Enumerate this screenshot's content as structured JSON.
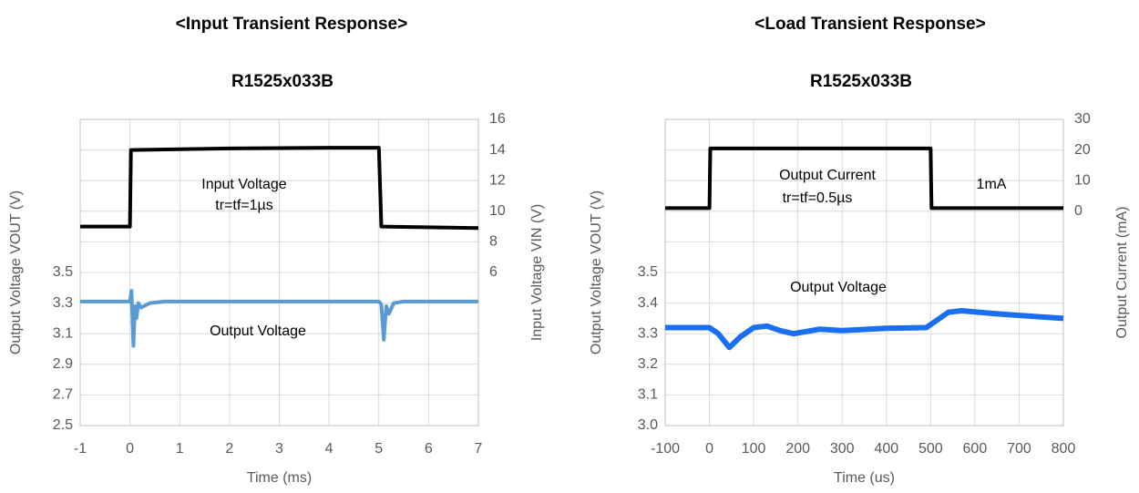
{
  "chart_data": [
    {
      "type": "line",
      "title": "<Input Transient Response>",
      "subtitle": "R1525x033B",
      "xlabel": "Time (ms)",
      "ylabel": "Output Voltage VOUT (V)",
      "y2label": "Input Voltage VIN (V)",
      "xlim": [
        -1,
        7
      ],
      "xticks": [
        -1,
        0,
        1,
        2,
        3,
        4,
        5,
        6,
        7
      ],
      "ylim": [
        2.5,
        4.5
      ],
      "yticks": [
        2.5,
        2.7,
        2.9,
        3.1,
        3.3,
        3.5
      ],
      "y2lim": [
        -4,
        16
      ],
      "y2ticks": [
        6,
        8,
        10,
        12,
        14,
        16
      ],
      "grid": true,
      "annotations": [
        "Input Voltage",
        "tr=tf=1µs",
        "Output  Voltage"
      ],
      "series": [
        {
          "name": "Input Voltage",
          "color": "#000000",
          "axis": "y2",
          "x": [
            -1,
            0,
            0.02,
            2,
            4,
            5,
            5.05,
            7
          ],
          "values": [
            9,
            9,
            14,
            14.1,
            14.15,
            14.15,
            9,
            8.9
          ]
        },
        {
          "name": "Output Voltage",
          "color": "#5b9bd5",
          "axis": "y",
          "x": [
            -1,
            0,
            0.03,
            0.07,
            0.1,
            0.13,
            0.17,
            0.22,
            0.4,
            0.7,
            5,
            5.05,
            5.1,
            5.15,
            5.2,
            5.3,
            5.5,
            7
          ],
          "values": [
            3.31,
            3.31,
            3.38,
            3.02,
            3.28,
            3.2,
            3.3,
            3.27,
            3.3,
            3.31,
            3.31,
            3.29,
            3.06,
            3.28,
            3.23,
            3.3,
            3.31,
            3.31
          ]
        }
      ]
    },
    {
      "type": "line",
      "title": "<Load Transient Response>",
      "subtitle": "R1525x033B",
      "xlabel": "Time (us)",
      "ylabel": "Output Voltage VOUT (V)",
      "y2label": "Output Current (mA)",
      "xlim": [
        -100,
        800
      ],
      "xticks": [
        -100,
        0,
        100,
        200,
        300,
        400,
        500,
        600,
        700,
        800
      ],
      "ylim": [
        3.0,
        4.0
      ],
      "yticks": [
        {
          "value": 3.0,
          "label": "3.0"
        },
        3.1,
        3.2,
        3.3,
        3.4,
        3.5
      ],
      "y2lim": [
        -70,
        30
      ],
      "y2ticks": [
        0,
        10,
        20,
        30
      ],
      "grid": true,
      "annotations": [
        "Output  Current",
        "tr=tf=0.5µs",
        "1mA",
        "Output  Voltage"
      ],
      "series": [
        {
          "name": "Output Current",
          "color": "#000000",
          "axis": "y2",
          "x": [
            -100,
            0,
            2,
            500,
            502,
            800
          ],
          "values": [
            1,
            1,
            20.5,
            20.5,
            1,
            1
          ]
        },
        {
          "name": "Output Voltage",
          "color": "#1a6ff0",
          "axis": "y",
          "x": [
            -100,
            0,
            20,
            45,
            70,
            100,
            130,
            160,
            190,
            250,
            300,
            400,
            490,
            510,
            540,
            570,
            650,
            800
          ],
          "values": [
            3.32,
            3.32,
            3.3,
            3.255,
            3.29,
            3.32,
            3.325,
            3.31,
            3.3,
            3.315,
            3.31,
            3.318,
            3.32,
            3.34,
            3.37,
            3.375,
            3.365,
            3.35
          ]
        }
      ]
    }
  ]
}
